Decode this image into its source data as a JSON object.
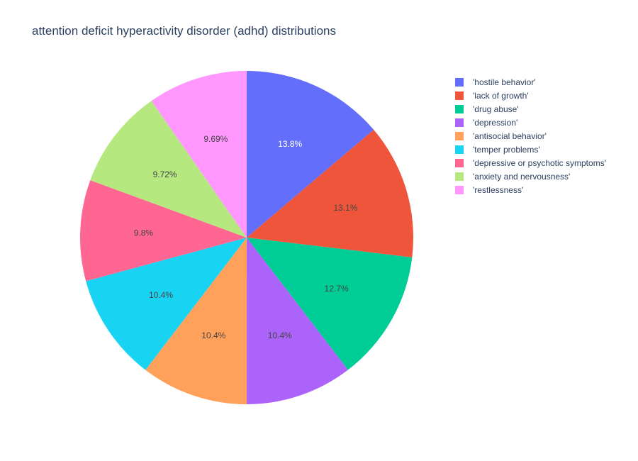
{
  "chart_data": {
    "type": "pie",
    "title": "attention deficit hyperactivity disorder (adhd) distributions",
    "legend_position": "top-right",
    "sort": "descending",
    "direction": "clockwise",
    "start_angle": "12 o'clock",
    "slices": [
      {
        "label": "'hostile behavior'",
        "value": 13.8,
        "text": "13.8%",
        "color": "#636efa",
        "text_color": "#ffffff"
      },
      {
        "label": "'lack of growth'",
        "value": 13.1,
        "text": "13.1%",
        "color": "#ef553b",
        "text_color": "#444444"
      },
      {
        "label": "'drug abuse'",
        "value": 12.7,
        "text": "12.7%",
        "color": "#00cc96",
        "text_color": "#444444"
      },
      {
        "label": "'depression'",
        "value": 10.4,
        "text": "10.4%",
        "color": "#ab63fa",
        "text_color": "#444444"
      },
      {
        "label": "'antisocial behavior'",
        "value": 10.4,
        "text": "10.4%",
        "color": "#ffa15a",
        "text_color": "#444444"
      },
      {
        "label": "'temper problems'",
        "value": 10.4,
        "text": "10.4%",
        "color": "#19d3f3",
        "text_color": "#444444"
      },
      {
        "label": "'depressive or psychotic symptoms'",
        "value": 9.8,
        "text": "9.8%",
        "color": "#ff6692",
        "text_color": "#444444"
      },
      {
        "label": "'anxiety and nervousness'",
        "value": 9.72,
        "text": "9.72%",
        "color": "#b6e880",
        "text_color": "#444444"
      },
      {
        "label": "'restlessness'",
        "value": 9.69,
        "text": "9.69%",
        "color": "#ff97ff",
        "text_color": "#444444"
      }
    ]
  }
}
